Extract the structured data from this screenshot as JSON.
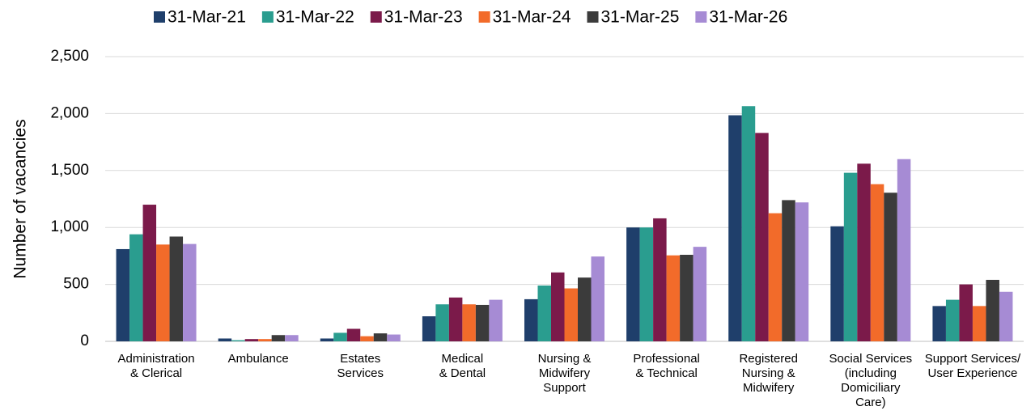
{
  "chart_data": {
    "type": "bar",
    "y_label": "Number of vacancies",
    "categories": [
      "Administration\n& Clerical",
      "Ambulance",
      "Estates\nServices",
      "Medical\n& Dental",
      "Nursing &\nMidwifery\nSupport",
      "Professional\n& Technical",
      "Registered\nNursing &\nMidwifery",
      "Social Services\n(including\nDomiciliary\nCare)",
      "Support Services/\nUser Experience"
    ],
    "series": [
      {
        "name": "31-Mar-21",
        "color": "#1f3f6b",
        "values": [
          810,
          25,
          25,
          220,
          370,
          1000,
          1985,
          1010,
          310
        ]
      },
      {
        "name": "31-Mar-22",
        "color": "#2a9d8f",
        "values": [
          940,
          10,
          75,
          325,
          490,
          1000,
          2065,
          1480,
          365
        ]
      },
      {
        "name": "31-Mar-23",
        "color": "#7b1a4a",
        "values": [
          1200,
          20,
          110,
          385,
          605,
          1080,
          1830,
          1560,
          500
        ]
      },
      {
        "name": "31-Mar-24",
        "color": "#f26b2a",
        "values": [
          850,
          20,
          45,
          325,
          465,
          755,
          1125,
          1380,
          310
        ]
      },
      {
        "name": "31-Mar-25",
        "color": "#3b3b3b",
        "values": [
          920,
          55,
          70,
          320,
          560,
          760,
          1240,
          1305,
          540
        ]
      },
      {
        "name": "31-Mar-26",
        "color": "#a68bd4",
        "values": [
          855,
          55,
          60,
          365,
          745,
          830,
          1220,
          1600,
          435
        ]
      }
    ],
    "ylim": [
      0,
      2500
    ],
    "yticks": [
      0,
      {
        "value": 500,
        "label": "500"
      },
      {
        "value": 1000,
        "label": "1,000"
      },
      {
        "value": 1500,
        "label": "1,500"
      },
      {
        "value": 2000,
        "label": "2,000"
      },
      {
        "value": 2500,
        "label": "2,500"
      }
    ],
    "grid": true,
    "legend": "top"
  }
}
